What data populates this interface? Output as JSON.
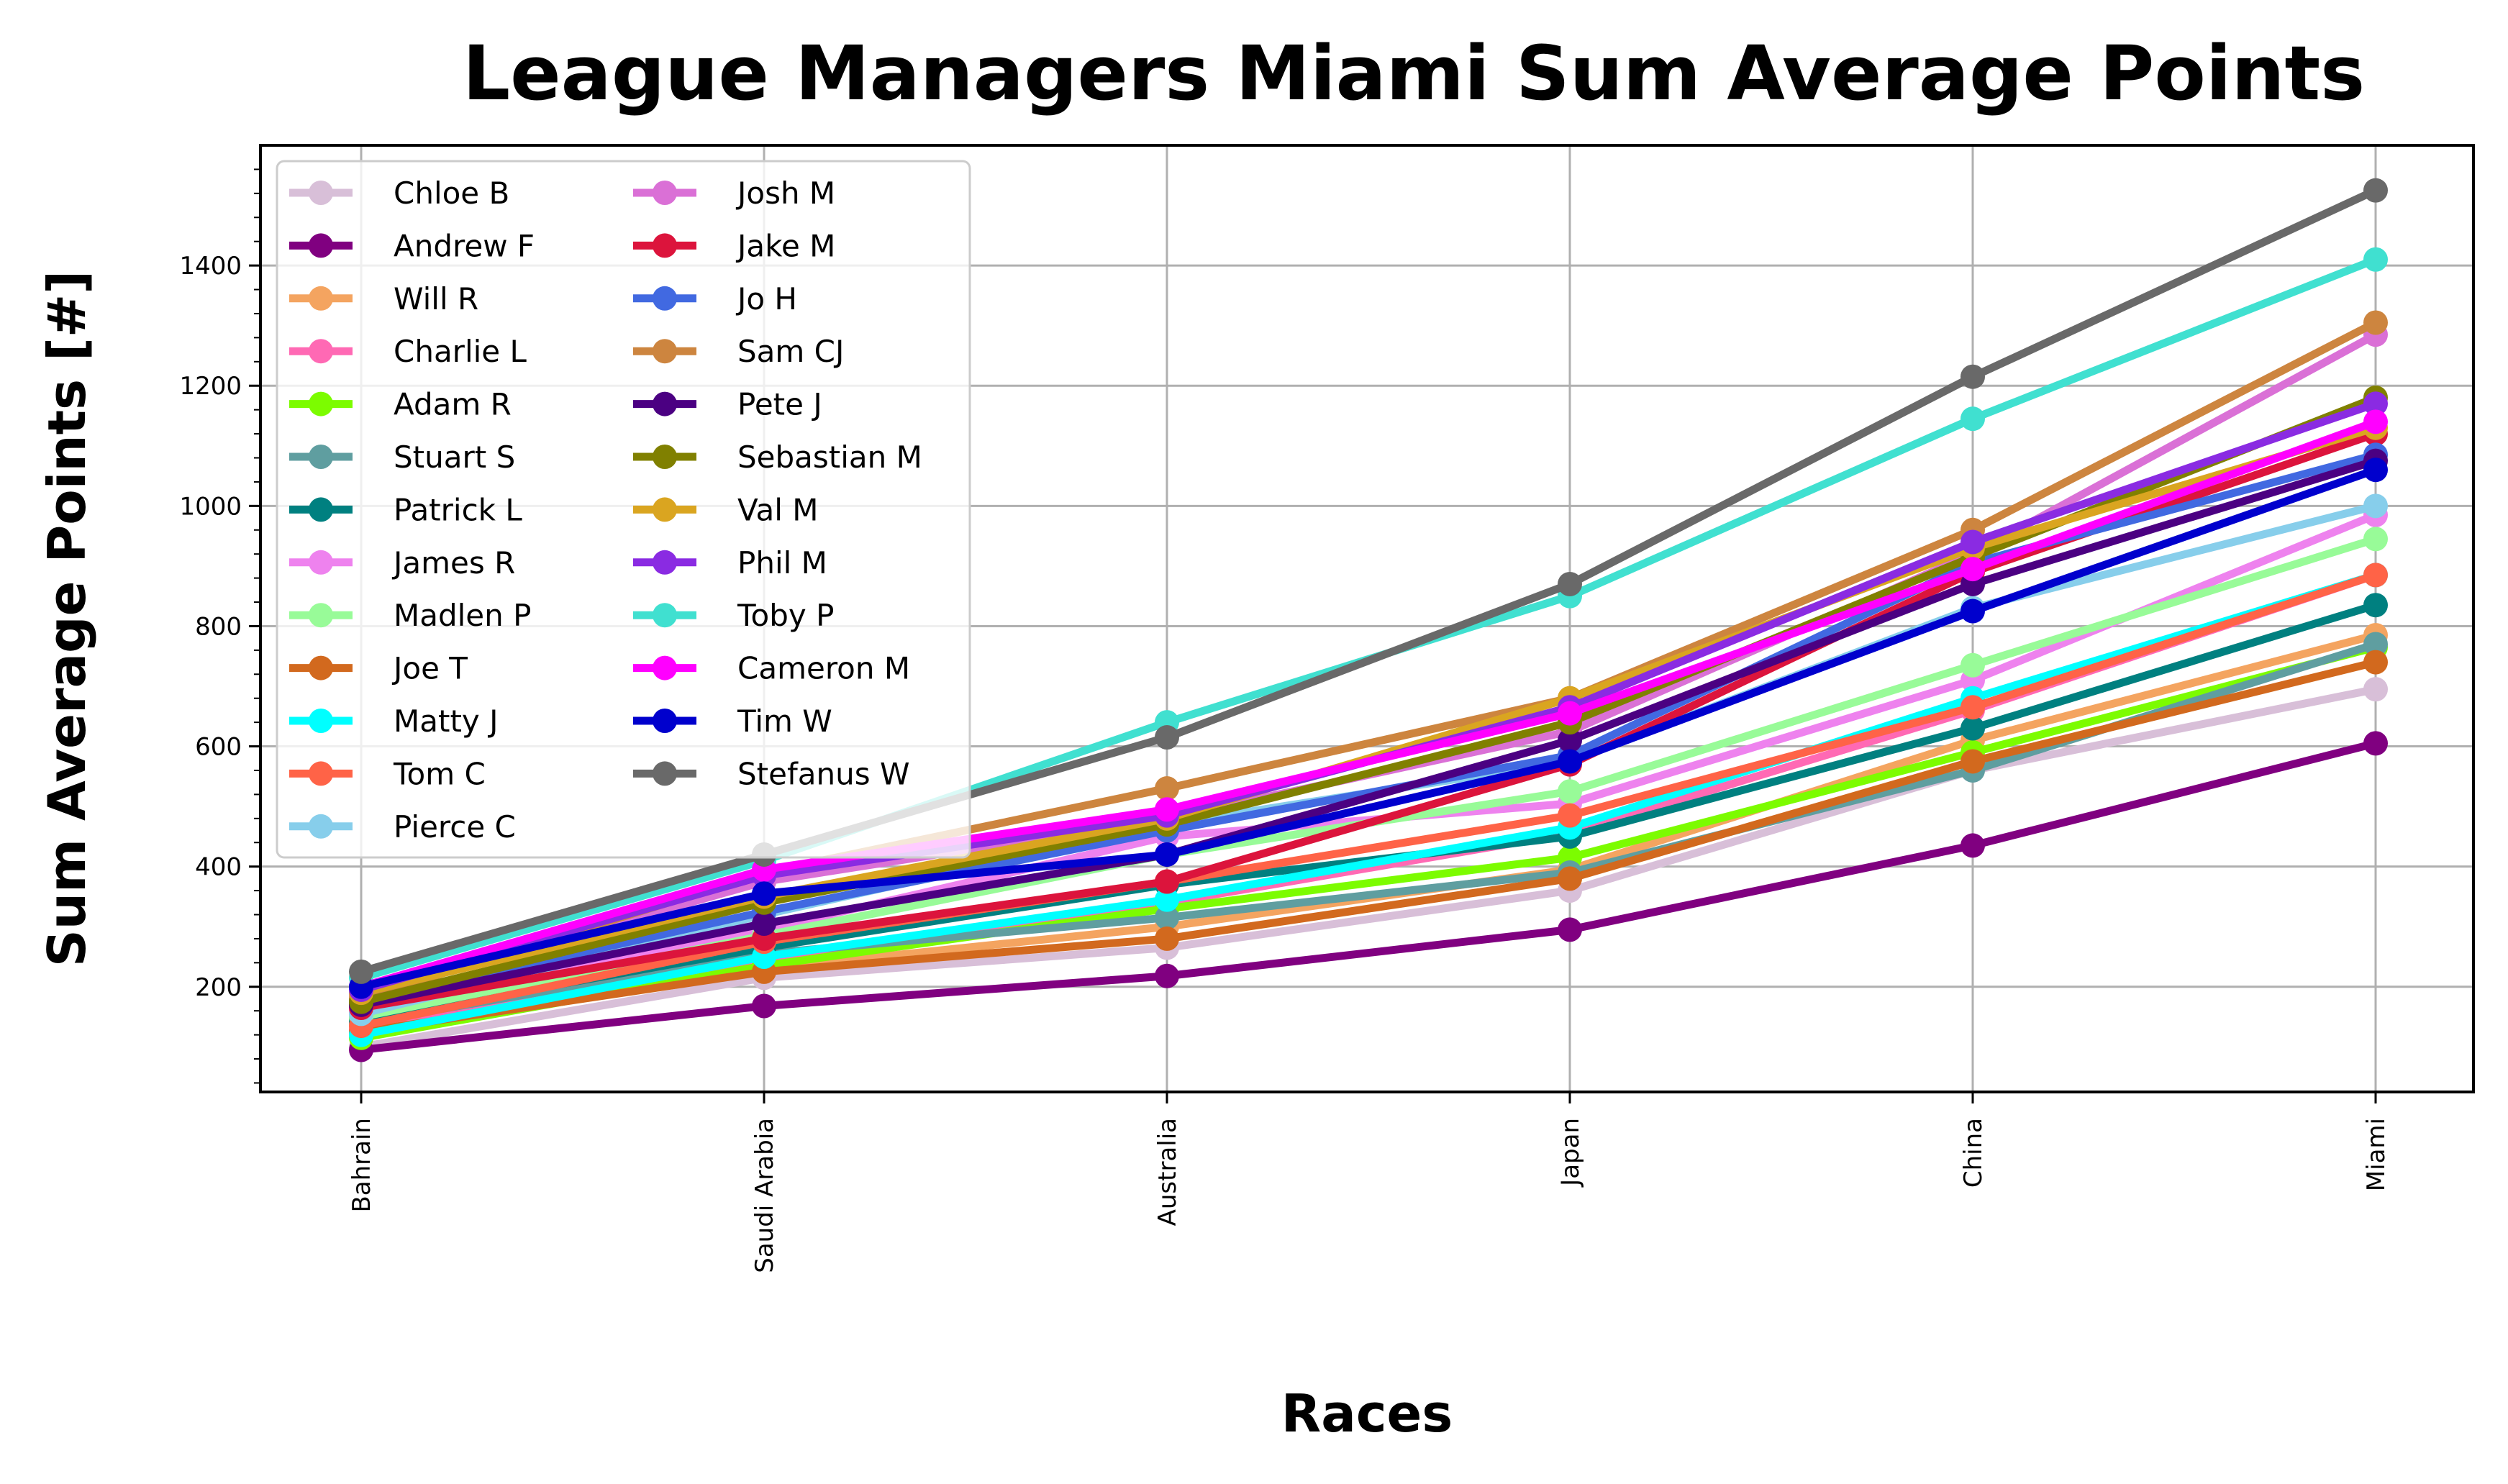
{
  "chart_data": {
    "type": "line",
    "title": "League Managers Miami Sum Average Points",
    "xlabel": "Races",
    "ylabel": "Sum Average Points [#]",
    "categories": [
      "Bahrain",
      "Saudi Arabia",
      "Australia",
      "Japan",
      "China",
      "Miami"
    ],
    "ylim": [
      25,
      1600
    ],
    "yticks": [
      200,
      400,
      600,
      800,
      1000,
      1200,
      1400
    ],
    "grid": true,
    "legend_position": "upper-left",
    "legend_columns": 2,
    "series": [
      {
        "name": "Chloe B",
        "color": "#d8bfd8",
        "values": [
          100,
          215,
          265,
          360,
          560,
          695
        ]
      },
      {
        "name": "Andrew F",
        "color": "#800080",
        "values": [
          95,
          168,
          218,
          295,
          435,
          605
        ]
      },
      {
        "name": "Will R",
        "color": "#f4a460",
        "values": [
          125,
          230,
          300,
          395,
          610,
          785
        ]
      },
      {
        "name": "Charlie L",
        "color": "#ff69b4",
        "values": [
          130,
          240,
          340,
          455,
          660,
          885
        ]
      },
      {
        "name": "Adam R",
        "color": "#7cfc00",
        "values": [
          115,
          235,
          330,
          415,
          590,
          765
        ]
      },
      {
        "name": "Stuart S",
        "color": "#5f9ea0",
        "values": [
          140,
          255,
          315,
          390,
          560,
          770
        ]
      },
      {
        "name": "Patrick L",
        "color": "#008080",
        "values": [
          145,
          265,
          370,
          450,
          630,
          835
        ]
      },
      {
        "name": "James R",
        "color": "#ee82ee",
        "values": [
          160,
          295,
          450,
          505,
          710,
          985
        ]
      },
      {
        "name": "Madlen P",
        "color": "#98fb98",
        "values": [
          150,
          285,
          420,
          525,
          735,
          945
        ]
      },
      {
        "name": "Joe T",
        "color": "#d2691e",
        "values": [
          125,
          225,
          280,
          380,
          575,
          740
        ]
      },
      {
        "name": "Matty J",
        "color": "#00ffff",
        "values": [
          120,
          250,
          345,
          465,
          680,
          885
        ]
      },
      {
        "name": "Tom C",
        "color": "#ff6347",
        "values": [
          135,
          275,
          375,
          485,
          665,
          885
        ]
      },
      {
        "name": "Pierce C",
        "color": "#87ceeb",
        "values": [
          155,
          320,
          470,
          575,
          830,
          1000
        ]
      },
      {
        "name": "Josh M",
        "color": "#da70d6",
        "values": [
          185,
          375,
          480,
          625,
          920,
          1285
        ]
      },
      {
        "name": "Jake M",
        "color": "#dc143c",
        "values": [
          165,
          280,
          375,
          570,
          890,
          1120
        ]
      },
      {
        "name": "Jo H",
        "color": "#4169e1",
        "values": [
          175,
          325,
          460,
          585,
          905,
          1085
        ]
      },
      {
        "name": "Sam CJ",
        "color": "#cd853f",
        "values": [
          180,
          390,
          530,
          680,
          960,
          1305
        ]
      },
      {
        "name": "Pete J",
        "color": "#4b0082",
        "values": [
          170,
          305,
          420,
          610,
          870,
          1075
        ]
      },
      {
        "name": "Sebastian M",
        "color": "#808000",
        "values": [
          175,
          340,
          470,
          640,
          915,
          1180
        ]
      },
      {
        "name": "Val M",
        "color": "#daa520",
        "values": [
          190,
          350,
          480,
          680,
          930,
          1130
        ]
      },
      {
        "name": "Phil M",
        "color": "#8a2be2",
        "values": [
          195,
          385,
          485,
          665,
          940,
          1170
        ]
      },
      {
        "name": "Toby P",
        "color": "#40e0d0",
        "values": [
          215,
          410,
          640,
          850,
          1145,
          1410
        ]
      },
      {
        "name": "Cameron M",
        "color": "#ff00ff",
        "values": [
          200,
          395,
          495,
          655,
          895,
          1140
        ]
      },
      {
        "name": "Tim W",
        "color": "#0000cd",
        "values": [
          200,
          355,
          420,
          575,
          825,
          1060
        ]
      },
      {
        "name": "Stefanus W",
        "color": "#696969",
        "values": [
          225,
          420,
          615,
          870,
          1215,
          1525
        ]
      }
    ]
  }
}
